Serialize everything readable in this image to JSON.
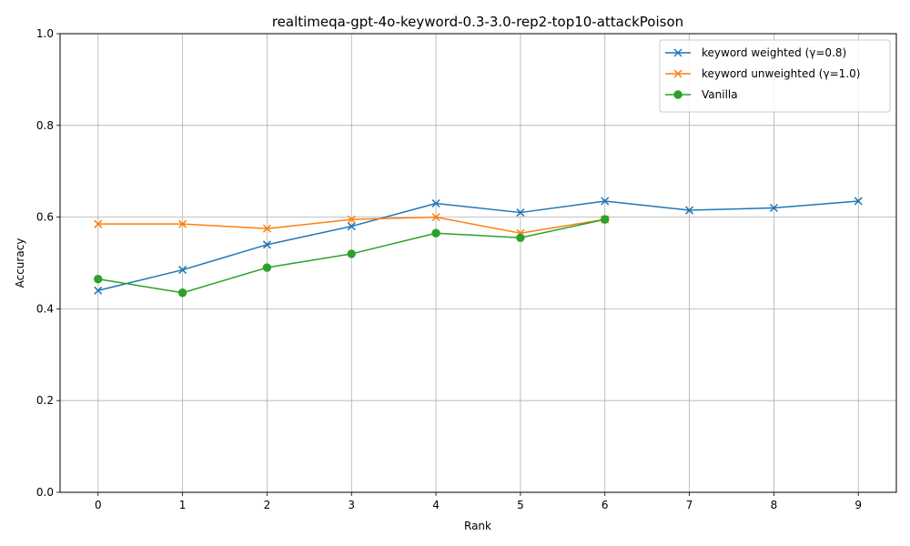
{
  "chart_data": {
    "type": "line",
    "title": "realtimeqa-gpt-4o-keyword-0.3-3.0-rep2-top10-attackPoison",
    "xlabel": "Rank",
    "ylabel": "Accuracy",
    "xlim": [
      -0.45,
      9.45
    ],
    "ylim": [
      0.0,
      1.0
    ],
    "xticks": [
      0,
      1,
      2,
      3,
      4,
      5,
      6,
      7,
      8,
      9
    ],
    "yticks": [
      0.0,
      0.2,
      0.4,
      0.6,
      0.8,
      1.0
    ],
    "xtick_labels": [
      "0",
      "1",
      "2",
      "3",
      "4",
      "5",
      "6",
      "7",
      "8",
      "9"
    ],
    "ytick_labels": [
      "0.0",
      "0.2",
      "0.4",
      "0.6",
      "0.8",
      "1.0"
    ],
    "grid": true,
    "legend_position": "top-right",
    "series": [
      {
        "name": "keyword weighted (γ=0.8)",
        "color": "#1f77b4",
        "marker": "x",
        "x": [
          0,
          1,
          2,
          3,
          4,
          5,
          6,
          7,
          8,
          9
        ],
        "values": [
          0.44,
          0.485,
          0.54,
          0.58,
          0.63,
          0.61,
          0.635,
          0.615,
          0.62,
          0.635
        ]
      },
      {
        "name": "keyword unweighted (γ=1.0)",
        "color": "#ff7f0e",
        "marker": "x",
        "x": [
          0,
          1,
          2,
          3,
          4,
          5,
          6
        ],
        "values": [
          0.585,
          0.585,
          0.575,
          0.595,
          0.6,
          0.565,
          0.595
        ]
      },
      {
        "name": "Vanilla",
        "color": "#2ca02c",
        "marker": "o",
        "x": [
          0,
          1,
          2,
          3,
          4,
          5,
          6
        ],
        "values": [
          0.465,
          0.435,
          0.49,
          0.52,
          0.565,
          0.555,
          0.595
        ]
      }
    ]
  }
}
